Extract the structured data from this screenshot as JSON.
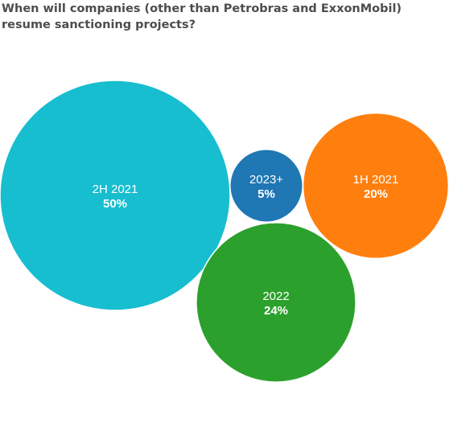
{
  "chart_data": {
    "type": "bubble",
    "title": "When will companies (other than Petrobras and ExxonMobil) resume sanctioning projects?",
    "categories": [
      "2H 2021",
      "2023+",
      "1H 2021",
      "2022"
    ],
    "values": [
      50,
      5,
      20,
      24
    ],
    "value_labels": [
      "50%",
      "5%",
      "20%",
      "24%"
    ],
    "colors": [
      "#17becf",
      "#1f77b4",
      "#ff7f0e",
      "#2ca02c"
    ],
    "unit": "%",
    "legend": "none",
    "grid": false
  }
}
